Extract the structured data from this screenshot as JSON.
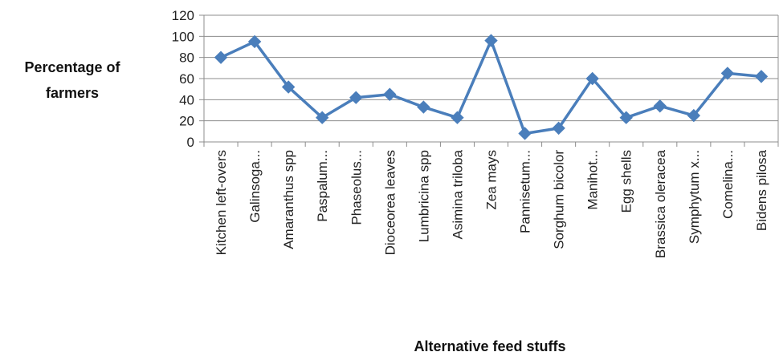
{
  "chart_data": {
    "type": "line",
    "title": "",
    "ylabel_lines": [
      "Percentage of",
      "farmers"
    ],
    "xlabel": "Alternative feed stuffs",
    "ylim": [
      0,
      120
    ],
    "yticks": [
      0,
      20,
      40,
      60,
      80,
      100,
      120
    ],
    "grid": true,
    "legend": "none",
    "color": "#4a7ebb",
    "categories": [
      "Kitchen left-overs",
      "Galinsoga...",
      "Amaranthus spp",
      "Paspalum...",
      "Phaseolus...",
      "Dioceorea leaves",
      "Lumbricina spp",
      "Asimina triloba",
      "Zea mays",
      "Pannisetum...",
      "Sorghum bicolor",
      "Manihot...",
      "Egg shells",
      "Brassica oleracea",
      "Symphytum x...",
      "Comelina...",
      "Bidens pilosa"
    ],
    "values": [
      80,
      95,
      52,
      23,
      42,
      45,
      33,
      23,
      96,
      8,
      13,
      60,
      23,
      34,
      25,
      65,
      62
    ]
  }
}
